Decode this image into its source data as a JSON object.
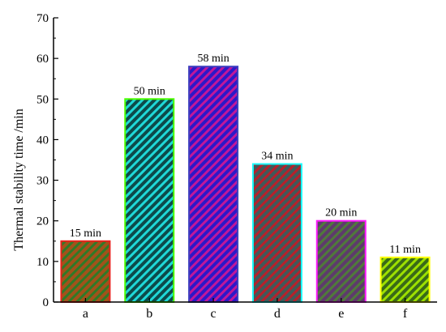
{
  "chart_data": {
    "type": "bar",
    "categories": [
      "a",
      "b",
      "c",
      "d",
      "e",
      "f"
    ],
    "values": [
      15,
      50,
      58,
      34,
      20,
      11
    ],
    "data_labels": [
      "15 min",
      "50 min",
      "58 min",
      "34 min",
      "20 min",
      "11 min"
    ],
    "title": "",
    "xlabel": "",
    "ylabel": "Thermal stability time /min",
    "ylim": [
      0,
      70
    ],
    "yticks": [
      0,
      10,
      20,
      30,
      40,
      50,
      60,
      70
    ],
    "grid": false,
    "legend": "none",
    "bar_colors": [
      {
        "edge": "#e8221b",
        "fill": "#a2521a",
        "hatch": "#2f7a28"
      },
      {
        "edge": "#4cff00",
        "fill": "#0d4a4a",
        "hatch": "#1fd8d8"
      },
      {
        "edge": "#3f3fbf",
        "fill": "#2d18c8",
        "hatch": "#c0179b"
      },
      {
        "edge": "#18ffff",
        "fill": "#3f5a5a",
        "hatch": "#b8202a"
      },
      {
        "edge": "#ff19ff",
        "fill": "#5e3a6c",
        "hatch": "#4f7a3a"
      },
      {
        "edge": "#ffff00",
        "fill": "#3a6a18",
        "hatch": "#9de000"
      }
    ]
  }
}
